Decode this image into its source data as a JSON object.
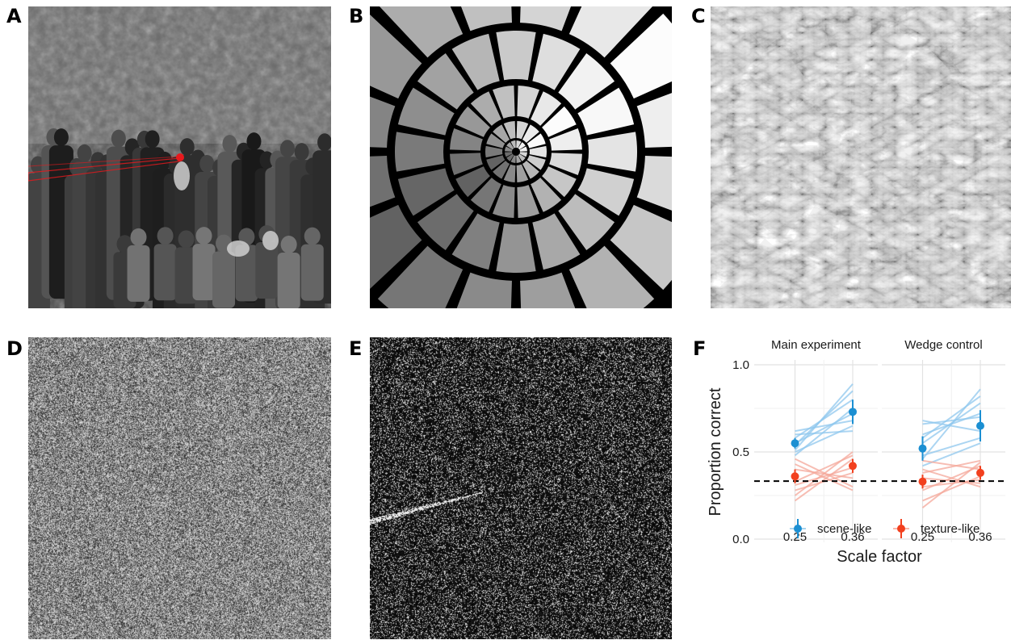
{
  "panels": {
    "a": {
      "letter": "A"
    },
    "b": {
      "letter": "B"
    },
    "c": {
      "letter": "C"
    },
    "d": {
      "letter": "D"
    },
    "e": {
      "letter": "E"
    },
    "f": {
      "letter": "F"
    }
  },
  "colors": {
    "scene": "#1b8fd2",
    "texture": "#f2401e",
    "scene_light": "#8fc8ee",
    "texture_light": "#f5a89a",
    "gaze_marker": "#e8191d"
  },
  "chart_data": {
    "type": "line",
    "facets": [
      "Main experiment",
      "Wedge control"
    ],
    "x": [
      0.25,
      0.36
    ],
    "xticklabels": [
      "0.25",
      "0.36"
    ],
    "xlabel": "Scale factor",
    "ylabel": "Proportion correct",
    "ylim": [
      0,
      1.0
    ],
    "yticks": [
      0.0,
      0.5,
      1.0
    ],
    "yticklabels": [
      "0.0",
      "0.5",
      "1.0"
    ],
    "chance_level": 0.333,
    "legend_position": "bottom-inside",
    "series": [
      {
        "name": "scene-like",
        "color_key": "scene",
        "means": [
          [
            0.55,
            0.73
          ],
          [
            0.52,
            0.65
          ]
        ],
        "errors": [
          [
            0.03,
            0.07
          ],
          [
            0.07,
            0.09
          ]
        ],
        "subjects": [
          [
            [
              0.51,
              0.89
            ],
            [
              0.54,
              0.85
            ],
            [
              0.6,
              0.62
            ],
            [
              0.58,
              0.8
            ],
            [
              0.5,
              0.65
            ],
            [
              0.55,
              0.72
            ],
            [
              0.62,
              0.68
            ],
            [
              0.48,
              0.75
            ]
          ],
          [
            [
              0.46,
              0.86
            ],
            [
              0.68,
              0.62
            ],
            [
              0.55,
              0.78
            ],
            [
              0.6,
              0.72
            ],
            [
              0.48,
              0.58
            ],
            [
              0.66,
              0.7
            ],
            [
              0.42,
              0.55
            ],
            [
              0.58,
              0.82
            ]
          ]
        ]
      },
      {
        "name": "texture-like",
        "color_key": "texture",
        "means": [
          [
            0.36,
            0.42
          ],
          [
            0.33,
            0.38
          ]
        ],
        "errors": [
          [
            0.04,
            0.04
          ],
          [
            0.04,
            0.04
          ]
        ],
        "subjects": [
          [
            [
              0.46,
              0.3
            ],
            [
              0.25,
              0.5
            ],
            [
              0.31,
              0.41
            ],
            [
              0.4,
              0.35
            ],
            [
              0.22,
              0.46
            ],
            [
              0.43,
              0.28
            ],
            [
              0.33,
              0.48
            ],
            [
              0.28,
              0.38
            ]
          ],
          [
            [
              0.4,
              0.3
            ],
            [
              0.18,
              0.44
            ],
            [
              0.28,
              0.42
            ],
            [
              0.45,
              0.4
            ],
            [
              0.35,
              0.32
            ],
            [
              0.22,
              0.36
            ],
            [
              0.38,
              0.45
            ],
            [
              0.3,
              0.34
            ]
          ]
        ]
      }
    ]
  }
}
